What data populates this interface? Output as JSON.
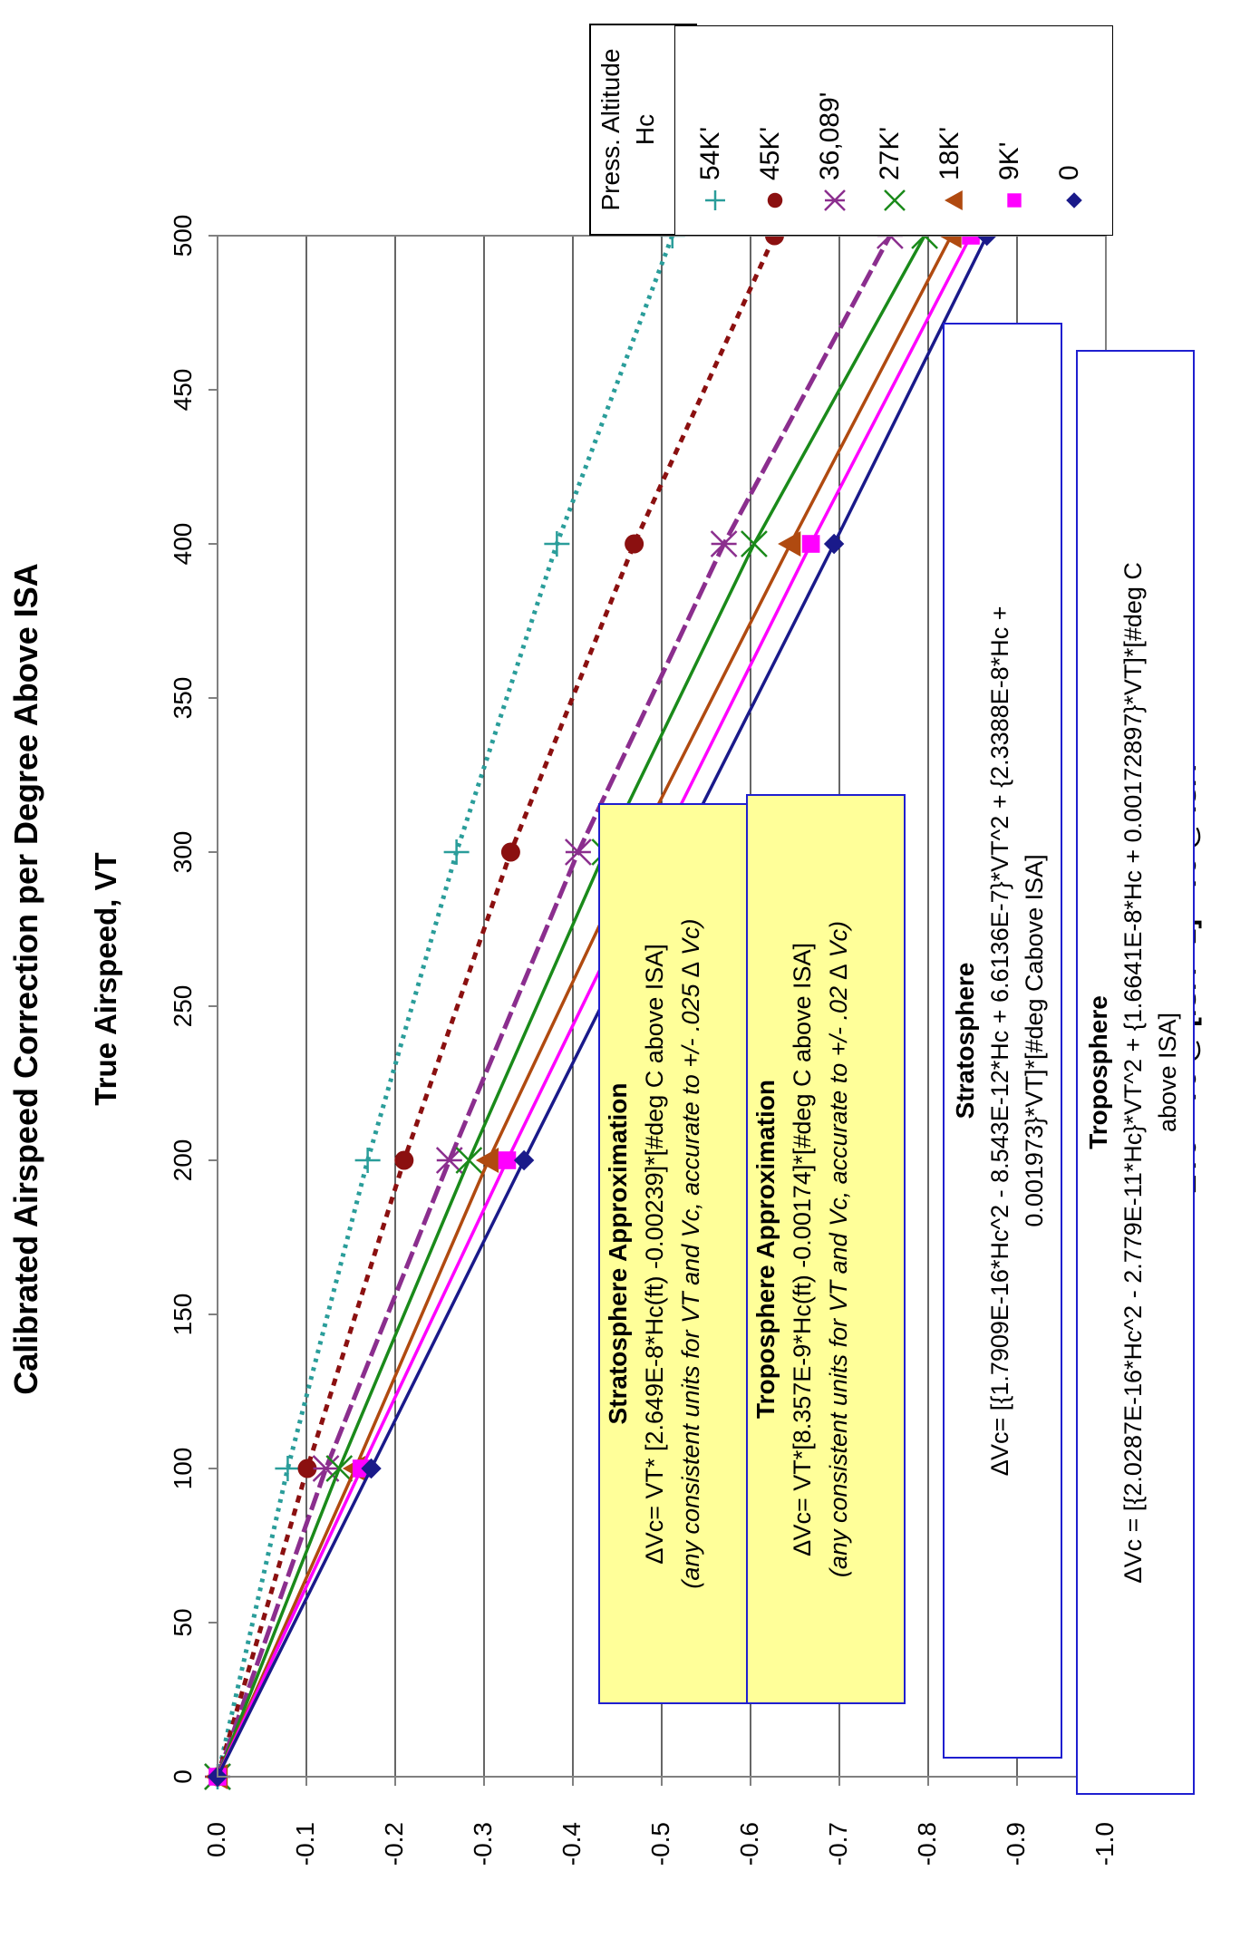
{
  "chart_data": {
    "type": "line",
    "title": "Calibrated Airspeed Correction per Degree Above ISA",
    "xlabel": "True Airspeed, VT",
    "ylabel": "∆Vc = Vc @ [ISA +1] - Vc @ ISA",
    "xlim": [
      0,
      500
    ],
    "ylim": [
      -1.0,
      0.0
    ],
    "x_ticks": [
      "0",
      "50",
      "100",
      "150",
      "200",
      "250",
      "300",
      "350",
      "400",
      "450",
      "500"
    ],
    "y_ticks": [
      "0.0",
      "-0.1",
      "-0.2",
      "-0.3",
      "-0.4",
      "-0.5",
      "-0.6",
      "-0.7",
      "-0.8",
      "-0.9",
      "-1.0"
    ],
    "grid": "horizontal",
    "legend_title": [
      "Press. Altitude",
      "Hc"
    ],
    "legend_placement": "top-right",
    "series": [
      {
        "name": "54K'",
        "color": "#2a9d9a",
        "marker": "plus",
        "line": "dotted",
        "x": [
          0,
          100,
          200,
          300,
          400,
          500
        ],
        "y": [
          0,
          -0.079,
          -0.169,
          -0.269,
          -0.382,
          -0.512
        ]
      },
      {
        "name": "45K'",
        "color": "#8b1010",
        "marker": "circle",
        "line": "dashed",
        "x": [
          0,
          100,
          200,
          300,
          400,
          500
        ],
        "y": [
          0,
          -0.101,
          -0.21,
          -0.33,
          -0.469,
          -0.627
        ]
      },
      {
        "name": "36,089'",
        "color": "#8b2e8e",
        "marker": "star",
        "line": "longdash",
        "x": [
          0,
          100,
          200,
          300,
          400,
          500
        ],
        "y": [
          0,
          -0.122,
          -0.261,
          -0.406,
          -0.57,
          -0.757
        ]
      },
      {
        "name": "27K'",
        "color": "#1a8a1a",
        "marker": "x",
        "line": "solid",
        "x": [
          0,
          100,
          200,
          300,
          400,
          500
        ],
        "y": [
          0,
          -0.137,
          -0.283,
          -0.436,
          -0.604,
          -0.796
        ]
      },
      {
        "name": "18K'",
        "color": "#b04a10",
        "marker": "triangle",
        "line": "solid",
        "x": [
          0,
          100,
          200,
          300,
          400,
          500
        ],
        "y": [
          0,
          -0.155,
          -0.305,
          -0.469,
          -0.645,
          -0.826
        ]
      },
      {
        "name": "9K'",
        "color": "#ff00ff",
        "marker": "square",
        "line": "solid",
        "x": [
          0,
          100,
          200,
          300,
          400,
          500
        ],
        "y": [
          0,
          -0.162,
          -0.326,
          -0.495,
          -0.668,
          -0.848
        ]
      },
      {
        "name": "0",
        "color": "#1a1a8a",
        "marker": "diamond",
        "line": "solid",
        "x": [
          0,
          100,
          200,
          300,
          400,
          500
        ],
        "y": [
          0,
          -0.173,
          -0.345,
          -0.519,
          -0.694,
          -0.866
        ]
      }
    ],
    "annotations": {
      "strat_approx": {
        "title": "Stratosphere Approximation",
        "formula": "∆Vc= VT* [2.649E-8*Hc(ft) -0.00239]*[#deg C above ISA]",
        "note": "(any consistent units for VT and Vc, accurate to +/- .025 ∆ Vc)"
      },
      "trop_approx": {
        "title": "Troposphere Approximation",
        "formula": "∆Vc= VT*[8.357E-9*Hc(ft) -0.00174]*[#deg C above ISA]",
        "note": "(any consistent units for VT and Vc, accurate to +/- .02 ∆ Vc)"
      },
      "strat_exact": {
        "title": "Stratosphere",
        "line1": "∆Vc= [{1.7909E-16*Hc^2 - 8.543E-12*Hc + 6.6136E-7}*VT^2 + {2.3388E-8*Hc +",
        "line2": "0.001973}*VT]*[#deg Cabove ISA]"
      },
      "trop_exact": {
        "title": "Troposphere",
        "line1": "∆Vc = [{2.0287E-16*Hc^2 - 2.779E-11*Hc}*VT^2 + {1.6641E-8*Hc + 0.00172897}*VT]*[#deg C",
        "line2": "above ISA]"
      }
    }
  }
}
